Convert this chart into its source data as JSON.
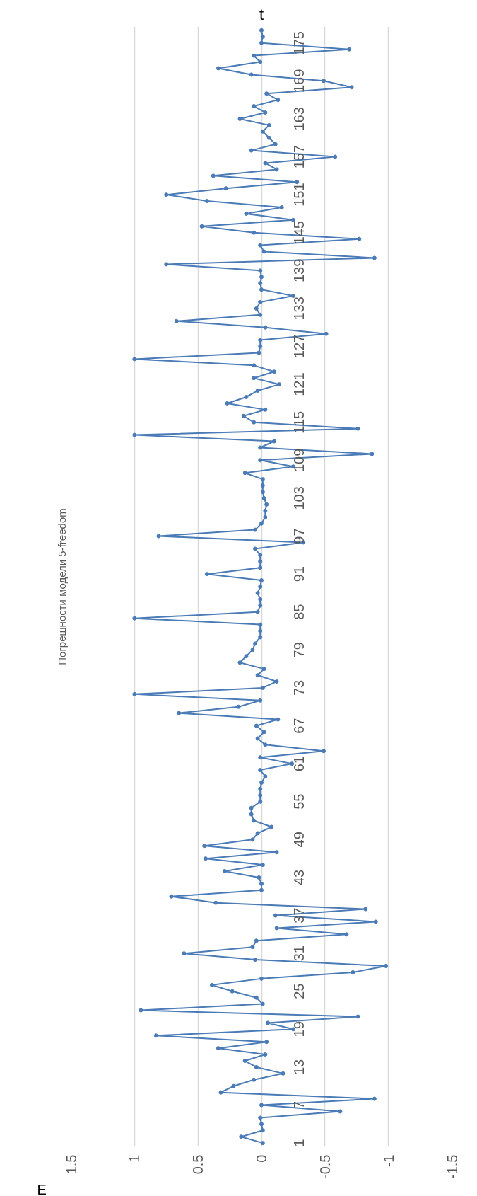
{
  "chart_data": {
    "type": "line",
    "orientation": "horizontal",
    "title": "Погрешности модели 5-freedom",
    "xlabel": "E",
    "ylabel": "t",
    "categories": [
      null,
      null,
      "175",
      null,
      null,
      null,
      null,
      null,
      "169",
      null,
      null,
      null,
      null,
      null,
      "163",
      null,
      null,
      null,
      null,
      null,
      "157",
      null,
      null,
      null,
      null,
      null,
      "151",
      null,
      null,
      null,
      null,
      null,
      "145",
      null,
      null,
      null,
      null,
      null,
      "139",
      null,
      null,
      null,
      null,
      null,
      "133",
      null,
      null,
      null,
      null,
      null,
      "127",
      null,
      null,
      null,
      null,
      null,
      "121",
      null,
      null,
      null,
      null,
      null,
      "115",
      null,
      null,
      null,
      null,
      null,
      "109",
      null,
      null,
      null,
      null,
      null,
      "103",
      null,
      null,
      null,
      null,
      null,
      "97",
      null,
      null,
      null,
      null,
      null,
      "91",
      null,
      null,
      null,
      null,
      null,
      "85",
      null,
      null,
      null,
      null,
      null,
      "79",
      null,
      null,
      null,
      null,
      null,
      "73",
      null,
      null,
      null,
      null,
      null,
      "67",
      null,
      null,
      null,
      null,
      null,
      "61",
      null,
      null,
      null,
      null,
      null,
      "55",
      null,
      null,
      null,
      null,
      null,
      "49",
      null,
      null,
      null,
      null,
      null,
      "43",
      null,
      null,
      null,
      null,
      null,
      "37",
      null,
      null,
      null,
      null,
      null,
      "31",
      null,
      null,
      null,
      null,
      null,
      "25",
      null,
      null,
      null,
      null,
      null,
      "19",
      null,
      null,
      null,
      null,
      null,
      "13",
      null,
      null,
      null,
      null,
      null,
      "7",
      null,
      null,
      null,
      null,
      null,
      "1"
    ],
    "values": [
      0.0,
      -0.01,
      0.0,
      -0.69,
      0.06,
      0.01,
      0.34,
      0.08,
      -0.49,
      -0.71,
      -0.04,
      -0.13,
      0.06,
      -0.03,
      0.17,
      -0.06,
      -0.01,
      -0.06,
      -0.11,
      0.08,
      -0.58,
      -0.03,
      -0.12,
      0.38,
      -0.28,
      0.28,
      0.75,
      0.43,
      -0.16,
      0.12,
      -0.25,
      0.47,
      0.06,
      -0.77,
      0.01,
      -0.02,
      -0.89,
      0.75,
      0.01,
      0.0,
      0.01,
      0.0,
      -0.25,
      0.01,
      0.04,
      0.01,
      0.67,
      -0.03,
      -0.51,
      0.01,
      0.01,
      0.02,
      1.0,
      0.06,
      -0.1,
      0.06,
      -0.14,
      0.03,
      0.12,
      0.27,
      -0.03,
      0.14,
      0.06,
      -0.76,
      1.0,
      -0.1,
      0.01,
      -0.87,
      0.01,
      -0.25,
      0.13,
      -0.01,
      -0.01,
      -0.01,
      -0.02,
      -0.04,
      -0.03,
      -0.03,
      0.0,
      0.05,
      0.81,
      -0.33,
      0.05,
      0.01,
      0.01,
      0.01,
      0.43,
      0.0,
      0.01,
      0.03,
      0.01,
      0.01,
      0.03,
      1.0,
      0.01,
      0.01,
      0.01,
      0.05,
      0.07,
      0.12,
      0.17,
      -0.02,
      0.03,
      -0.12,
      -0.01,
      1.0,
      0.01,
      0.18,
      0.65,
      -0.13,
      0.04,
      -0.02,
      0.03,
      -0.03,
      -0.49,
      0.01,
      -0.24,
      0.01,
      -0.03,
      0.0,
      0.01,
      0.01,
      0.01,
      0.08,
      0.08,
      0.06,
      -0.08,
      0.03,
      0.07,
      0.45,
      -0.12,
      0.44,
      -0.01,
      0.29,
      0.02,
      0.0,
      0.0,
      0.71,
      0.36,
      -0.82,
      -0.11,
      -0.9,
      -0.12,
      -0.67,
      0.04,
      0.07,
      0.61,
      0.05,
      -0.98,
      -0.72,
      0.0,
      0.39,
      0.23,
      0.04,
      -0.01,
      0.95,
      -0.76,
      -0.05,
      -0.25,
      0.83,
      -0.04,
      0.34,
      -0.03,
      0.13,
      0.04,
      -0.17,
      0.06,
      0.22,
      0.32,
      -0.89,
      0.0,
      -0.62,
      0.01,
      0.0,
      -0.01,
      0.16,
      -0.01
    ],
    "color": "#4a7bb7",
    "xlim": [
      1.5,
      -1.5
    ],
    "xticks": [
      1.5,
      1,
      0.5,
      0,
      -0.5,
      -1,
      -1.5
    ],
    "grid": "x",
    "marker": "circle",
    "line_style": "solid"
  }
}
